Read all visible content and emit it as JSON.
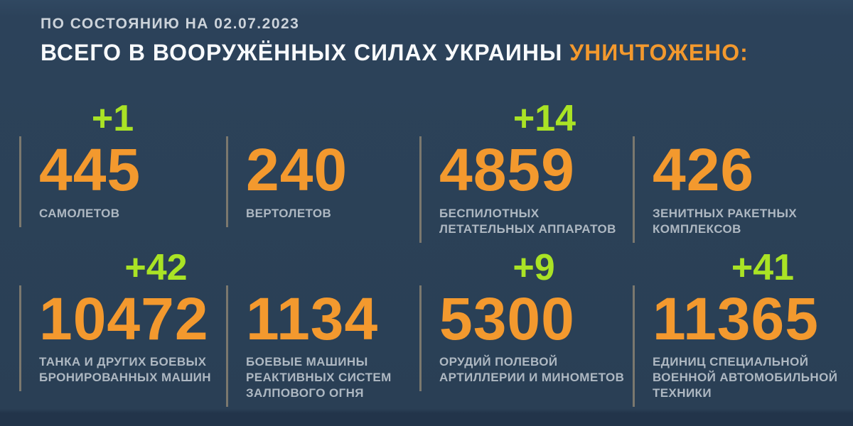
{
  "header": {
    "date_line": "ПО СОСТОЯНИЮ НА 02.07.2023",
    "title_main": "ВСЕГО В ВООРУЖЁННЫХ СИЛАХ УКРАИНЫ ",
    "title_accent": "УНИЧТОЖЕНО:"
  },
  "colors": {
    "background": "#2b4157",
    "accent_orange": "#f3992e",
    "increment_green": "#aae325",
    "label_gray": "#aeb8c2",
    "divider_gray": "#7b786e"
  },
  "stats": [
    {
      "value": "445",
      "increment": "+1",
      "label": "САМОЛЕТОВ"
    },
    {
      "value": "240",
      "label": "ВЕРТОЛЕТОВ"
    },
    {
      "value": "4859",
      "increment": "+14",
      "label": [
        "БЕСПИЛОТНЫХ",
        "ЛЕТАТЕЛЬНЫХ АППАРАТОВ"
      ]
    },
    {
      "value": "426",
      "label": [
        "ЗЕНИТНЫХ РАКЕТНЫХ",
        "КОМПЛЕКСОВ"
      ]
    },
    {
      "value": "10472",
      "increment": "+42",
      "label": [
        "ТАНКА И ДРУГИХ БОЕВЫХ",
        "БРОНИРОВАННЫХ МАШИН"
      ]
    },
    {
      "value": "1134",
      "label": [
        "БОЕВЫЕ МАШИНЫ",
        "РЕАКТИВНЫХ СИСТЕМ",
        "ЗАЛПОВОГО ОГНЯ"
      ]
    },
    {
      "value": "5300",
      "increment": "+9",
      "label": [
        "ОРУДИЙ ПОЛЕВОЙ",
        "АРТИЛЛЕРИИ И МИНОМЕТОВ"
      ]
    },
    {
      "value": "11365",
      "increment": "+41",
      "label": [
        "ЕДИНИЦ СПЕЦИАЛЬНОЙ",
        "ВОЕННОЙ АВТОМОБИЛЬНОЙ",
        "ТЕХНИКИ"
      ]
    }
  ],
  "chart_data": {
    "type": "table",
    "title": "ВСЕГО В ВООРУЖЁННЫХ СИЛАХ УКРАИНЫ УНИЧТОЖЕНО:",
    "subtitle": "ПО СОСТОЯНИЮ НА 02.07.2023",
    "categories": [
      "самолетов",
      "вертолетов",
      "беспилотных летательных аппаратов",
      "зенитных ракетных комплексов",
      "танка и других боевых бронированных машин",
      "боевые машины реактивных систем залпового огня",
      "орудий полевой артиллерии и минометов",
      "единиц специальной военной автомобильной техники"
    ],
    "values": [
      445,
      240,
      4859,
      426,
      10472,
      1134,
      5300,
      11365
    ],
    "daily_increments": [
      1,
      null,
      14,
      null,
      42,
      null,
      9,
      41
    ],
    "layout": "2 rows x 4 columns, increments shown in green above values"
  }
}
